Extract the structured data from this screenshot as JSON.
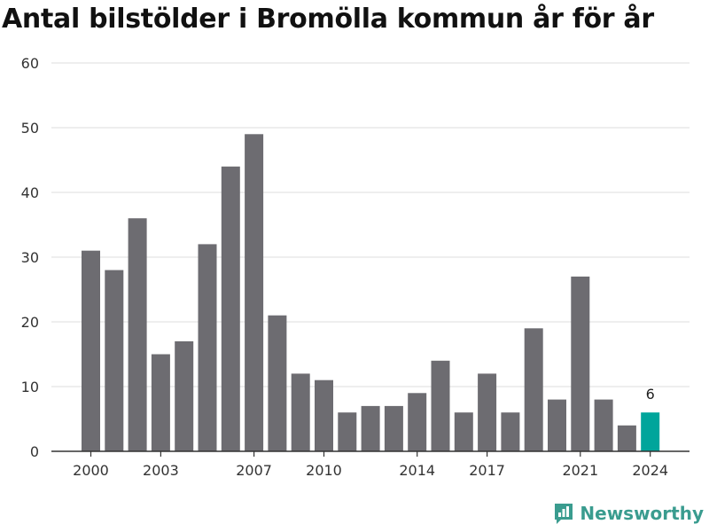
{
  "chart_data": {
    "type": "bar",
    "title": "Antal bilstölder i Bromölla kommun år för år",
    "xlabel": "",
    "ylabel": "",
    "ylim": [
      0,
      60
    ],
    "yticks": [
      "0",
      "10",
      "20",
      "30",
      "40",
      "50",
      "60"
    ],
    "categories": [
      "2000",
      "2001",
      "2002",
      "2003",
      "2004",
      "2005",
      "2006",
      "2007",
      "2008",
      "2009",
      "2010",
      "2011",
      "2012",
      "2013",
      "2014",
      "2015",
      "2016",
      "2017",
      "2018",
      "2019",
      "2020",
      "2021",
      "2022",
      "2023",
      "2024"
    ],
    "xtick_labels": [
      "2000",
      "2003",
      "2007",
      "2010",
      "2014",
      "2017",
      "2021",
      "2024"
    ],
    "values": [
      31,
      28,
      36,
      15,
      17,
      32,
      44,
      49,
      21,
      12,
      11,
      6,
      7,
      7,
      9,
      14,
      6,
      12,
      6,
      19,
      8,
      27,
      8,
      4,
      6
    ],
    "highlight": {
      "category": "2024",
      "label": "6"
    },
    "grid": true,
    "legend": "none",
    "colors": {
      "bar": "#6d6c71",
      "highlight": "#00a59b",
      "grid": "#dddddd",
      "axis": "#333333"
    }
  },
  "brand": {
    "name": "Newsworthy",
    "color": "#3a9c8f",
    "icon": "bar-chart-logo-icon"
  }
}
